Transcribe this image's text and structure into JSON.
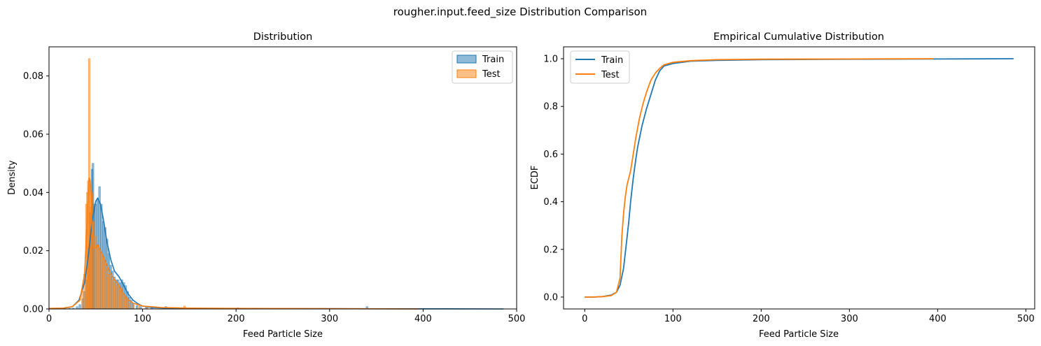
{
  "figure": {
    "suptitle": "rougher.input.feed_size Distribution Comparison"
  },
  "colors": {
    "train": "#1f77b4",
    "test": "#ff7f0e"
  },
  "chart_data": [
    {
      "type": "histogram",
      "title": "Distribution",
      "xlabel": "Feed Particle Size",
      "ylabel": "Density",
      "xlim": [
        0,
        500
      ],
      "ylim": [
        0,
        0.09
      ],
      "xticks": [
        "0",
        "100",
        "200",
        "300",
        "400",
        "500"
      ],
      "yticks": [
        "0.00",
        "0.02",
        "0.04",
        "0.06",
        "0.08"
      ],
      "xtick_values": [
        0,
        100,
        200,
        300,
        400,
        500
      ],
      "ytick_values": [
        0,
        0.02,
        0.04,
        0.06,
        0.08
      ],
      "legend_position": "top-right",
      "series": [
        {
          "name": "Train",
          "bars": [
            [
              22,
              0.0002
            ],
            [
              26,
              0.0003
            ],
            [
              30,
              0.0008
            ],
            [
              33,
              0.0015
            ],
            [
              36,
              0.0035
            ],
            [
              38,
              0.006
            ],
            [
              40,
              0.01
            ],
            [
              42,
              0.021
            ],
            [
              44,
              0.033
            ],
            [
              46,
              0.048
            ],
            [
              47,
              0.05
            ],
            [
              48,
              0.036
            ],
            [
              50,
              0.036
            ],
            [
              52,
              0.038
            ],
            [
              54,
              0.042
            ],
            [
              56,
              0.036
            ],
            [
              58,
              0.03
            ],
            [
              60,
              0.028
            ],
            [
              62,
              0.024
            ],
            [
              64,
              0.019
            ],
            [
              66,
              0.015
            ],
            [
              68,
              0.013
            ],
            [
              70,
              0.011
            ],
            [
              72,
              0.01
            ],
            [
              74,
              0.01
            ],
            [
              76,
              0.009
            ],
            [
              78,
              0.01
            ],
            [
              80,
              0.009
            ],
            [
              82,
              0.008
            ],
            [
              84,
              0.006
            ],
            [
              86,
              0.004
            ],
            [
              88,
              0.003
            ],
            [
              90,
              0.002
            ],
            [
              94,
              0.0012
            ],
            [
              98,
              0.0008
            ],
            [
              104,
              0.0005
            ],
            [
              110,
              0.0004
            ],
            [
              125,
              0.0008
            ],
            [
              145,
              0.0004
            ],
            [
              178,
              0.0003
            ],
            [
              202,
              0.0004
            ],
            [
              240,
              0.0002
            ],
            [
              295,
              0.0002
            ],
            [
              340,
              0.0008
            ],
            [
              400,
              0.0002
            ],
            [
              484,
              0.0001
            ]
          ],
          "kde": [
            [
              0,
              0.0001
            ],
            [
              15,
              0.0002
            ],
            [
              25,
              0.0008
            ],
            [
              32,
              0.003
            ],
            [
              38,
              0.009
            ],
            [
              42,
              0.018
            ],
            [
              46,
              0.03
            ],
            [
              50,
              0.037
            ],
            [
              52,
              0.038
            ],
            [
              55,
              0.036
            ],
            [
              58,
              0.031
            ],
            [
              62,
              0.023
            ],
            [
              66,
              0.017
            ],
            [
              70,
              0.013
            ],
            [
              75,
              0.011
            ],
            [
              80,
              0.008
            ],
            [
              85,
              0.005
            ],
            [
              90,
              0.003
            ],
            [
              95,
              0.0018
            ],
            [
              100,
              0.001
            ],
            [
              110,
              0.0005
            ],
            [
              125,
              0.0003
            ],
            [
              150,
              0.0002
            ],
            [
              200,
              0.0001
            ],
            [
              300,
              0.0001
            ],
            [
              400,
              5e-05
            ],
            [
              486,
              0.0
            ]
          ],
          "ecdf": [
            [
              0,
              0.0
            ],
            [
              10,
              0.0
            ],
            [
              20,
              0.002
            ],
            [
              30,
              0.008
            ],
            [
              36,
              0.02
            ],
            [
              40,
              0.05
            ],
            [
              44,
              0.12
            ],
            [
              48,
              0.25
            ],
            [
              50,
              0.32
            ],
            [
              52,
              0.4
            ],
            [
              55,
              0.5
            ],
            [
              58,
              0.58
            ],
            [
              60,
              0.63
            ],
            [
              65,
              0.72
            ],
            [
              70,
              0.79
            ],
            [
              75,
              0.85
            ],
            [
              80,
              0.91
            ],
            [
              85,
              0.95
            ],
            [
              90,
              0.97
            ],
            [
              100,
              0.98
            ],
            [
              120,
              0.99
            ],
            [
              150,
              0.993
            ],
            [
              200,
              0.996
            ],
            [
              300,
              0.998
            ],
            [
              400,
              0.999
            ],
            [
              486,
              1.0
            ]
          ]
        },
        {
          "name": "Test",
          "bars": [
            [
              36,
              0.006
            ],
            [
              38,
              0.012
            ],
            [
              40,
              0.036
            ],
            [
              41,
              0.04
            ],
            [
              42,
              0.044
            ],
            [
              43,
              0.086
            ],
            [
              44,
              0.043
            ],
            [
              45,
              0.035
            ],
            [
              46,
              0.04
            ],
            [
              48,
              0.03
            ],
            [
              50,
              0.025
            ],
            [
              52,
              0.022
            ],
            [
              54,
              0.02
            ],
            [
              56,
              0.019
            ],
            [
              58,
              0.018
            ],
            [
              60,
              0.016
            ],
            [
              62,
              0.014
            ],
            [
              64,
              0.012
            ],
            [
              66,
              0.011
            ],
            [
              68,
              0.01
            ],
            [
              70,
              0.009
            ],
            [
              72,
              0.008
            ],
            [
              74,
              0.008
            ],
            [
              76,
              0.007
            ],
            [
              78,
              0.007
            ],
            [
              80,
              0.005
            ],
            [
              82,
              0.004
            ],
            [
              84,
              0.003
            ],
            [
              86,
              0.002
            ],
            [
              90,
              0.0015
            ],
            [
              96,
              0.001
            ],
            [
              105,
              0.0008
            ],
            [
              145,
              0.001
            ],
            [
              340,
              0.0002
            ]
          ],
          "kde": [
            [
              0,
              0.0002
            ],
            [
              15,
              0.0003
            ],
            [
              25,
              0.0008
            ],
            [
              33,
              0.003
            ],
            [
              38,
              0.012
            ],
            [
              40,
              0.025
            ],
            [
              42,
              0.04
            ],
            [
              43,
              0.045
            ],
            [
              44,
              0.044
            ],
            [
              45,
              0.04
            ],
            [
              46,
              0.028
            ],
            [
              48,
              0.021
            ],
            [
              50,
              0.021
            ],
            [
              52,
              0.022
            ],
            [
              55,
              0.02
            ],
            [
              58,
              0.018
            ],
            [
              62,
              0.015
            ],
            [
              66,
              0.012
            ],
            [
              70,
              0.01
            ],
            [
              75,
              0.008
            ],
            [
              80,
              0.005
            ],
            [
              85,
              0.003
            ],
            [
              90,
              0.002
            ],
            [
              100,
              0.001
            ],
            [
              120,
              0.0005
            ],
            [
              150,
              0.0003
            ],
            [
              200,
              0.0002
            ],
            [
              300,
              0.0001
            ],
            [
              395,
              0.0
            ]
          ],
          "ecdf": [
            [
              0,
              0.0
            ],
            [
              10,
              0.0
            ],
            [
              20,
              0.002
            ],
            [
              30,
              0.006
            ],
            [
              36,
              0.02
            ],
            [
              40,
              0.08
            ],
            [
              42,
              0.25
            ],
            [
              44,
              0.35
            ],
            [
              46,
              0.42
            ],
            [
              48,
              0.47
            ],
            [
              52,
              0.53
            ],
            [
              55,
              0.6
            ],
            [
              58,
              0.67
            ],
            [
              62,
              0.75
            ],
            [
              66,
              0.81
            ],
            [
              70,
              0.86
            ],
            [
              75,
              0.91
            ],
            [
              80,
              0.94
            ],
            [
              85,
              0.96
            ],
            [
              90,
              0.975
            ],
            [
              100,
              0.985
            ],
            [
              120,
              0.992
            ],
            [
              150,
              0.996
            ],
            [
              200,
              0.998
            ],
            [
              300,
              0.999
            ],
            [
              395,
              1.0
            ]
          ]
        }
      ]
    },
    {
      "type": "line",
      "title": "Empirical Cumulative Distribution",
      "xlabel": "Feed Particle Size",
      "ylabel": "ECDF",
      "xlim": [
        -24,
        510
      ],
      "ylim": [
        -0.05,
        1.05
      ],
      "xticks": [
        "0",
        "100",
        "200",
        "300",
        "400",
        "500"
      ],
      "yticks": [
        "0.0",
        "0.2",
        "0.4",
        "0.6",
        "0.8",
        "1.0"
      ],
      "xtick_values": [
        0,
        100,
        200,
        300,
        400,
        500
      ],
      "ytick_values": [
        0,
        0.2,
        0.4,
        0.6,
        0.8,
        1.0
      ],
      "legend_position": "top-left",
      "series_ref": [
        "Train",
        "Test"
      ]
    }
  ]
}
